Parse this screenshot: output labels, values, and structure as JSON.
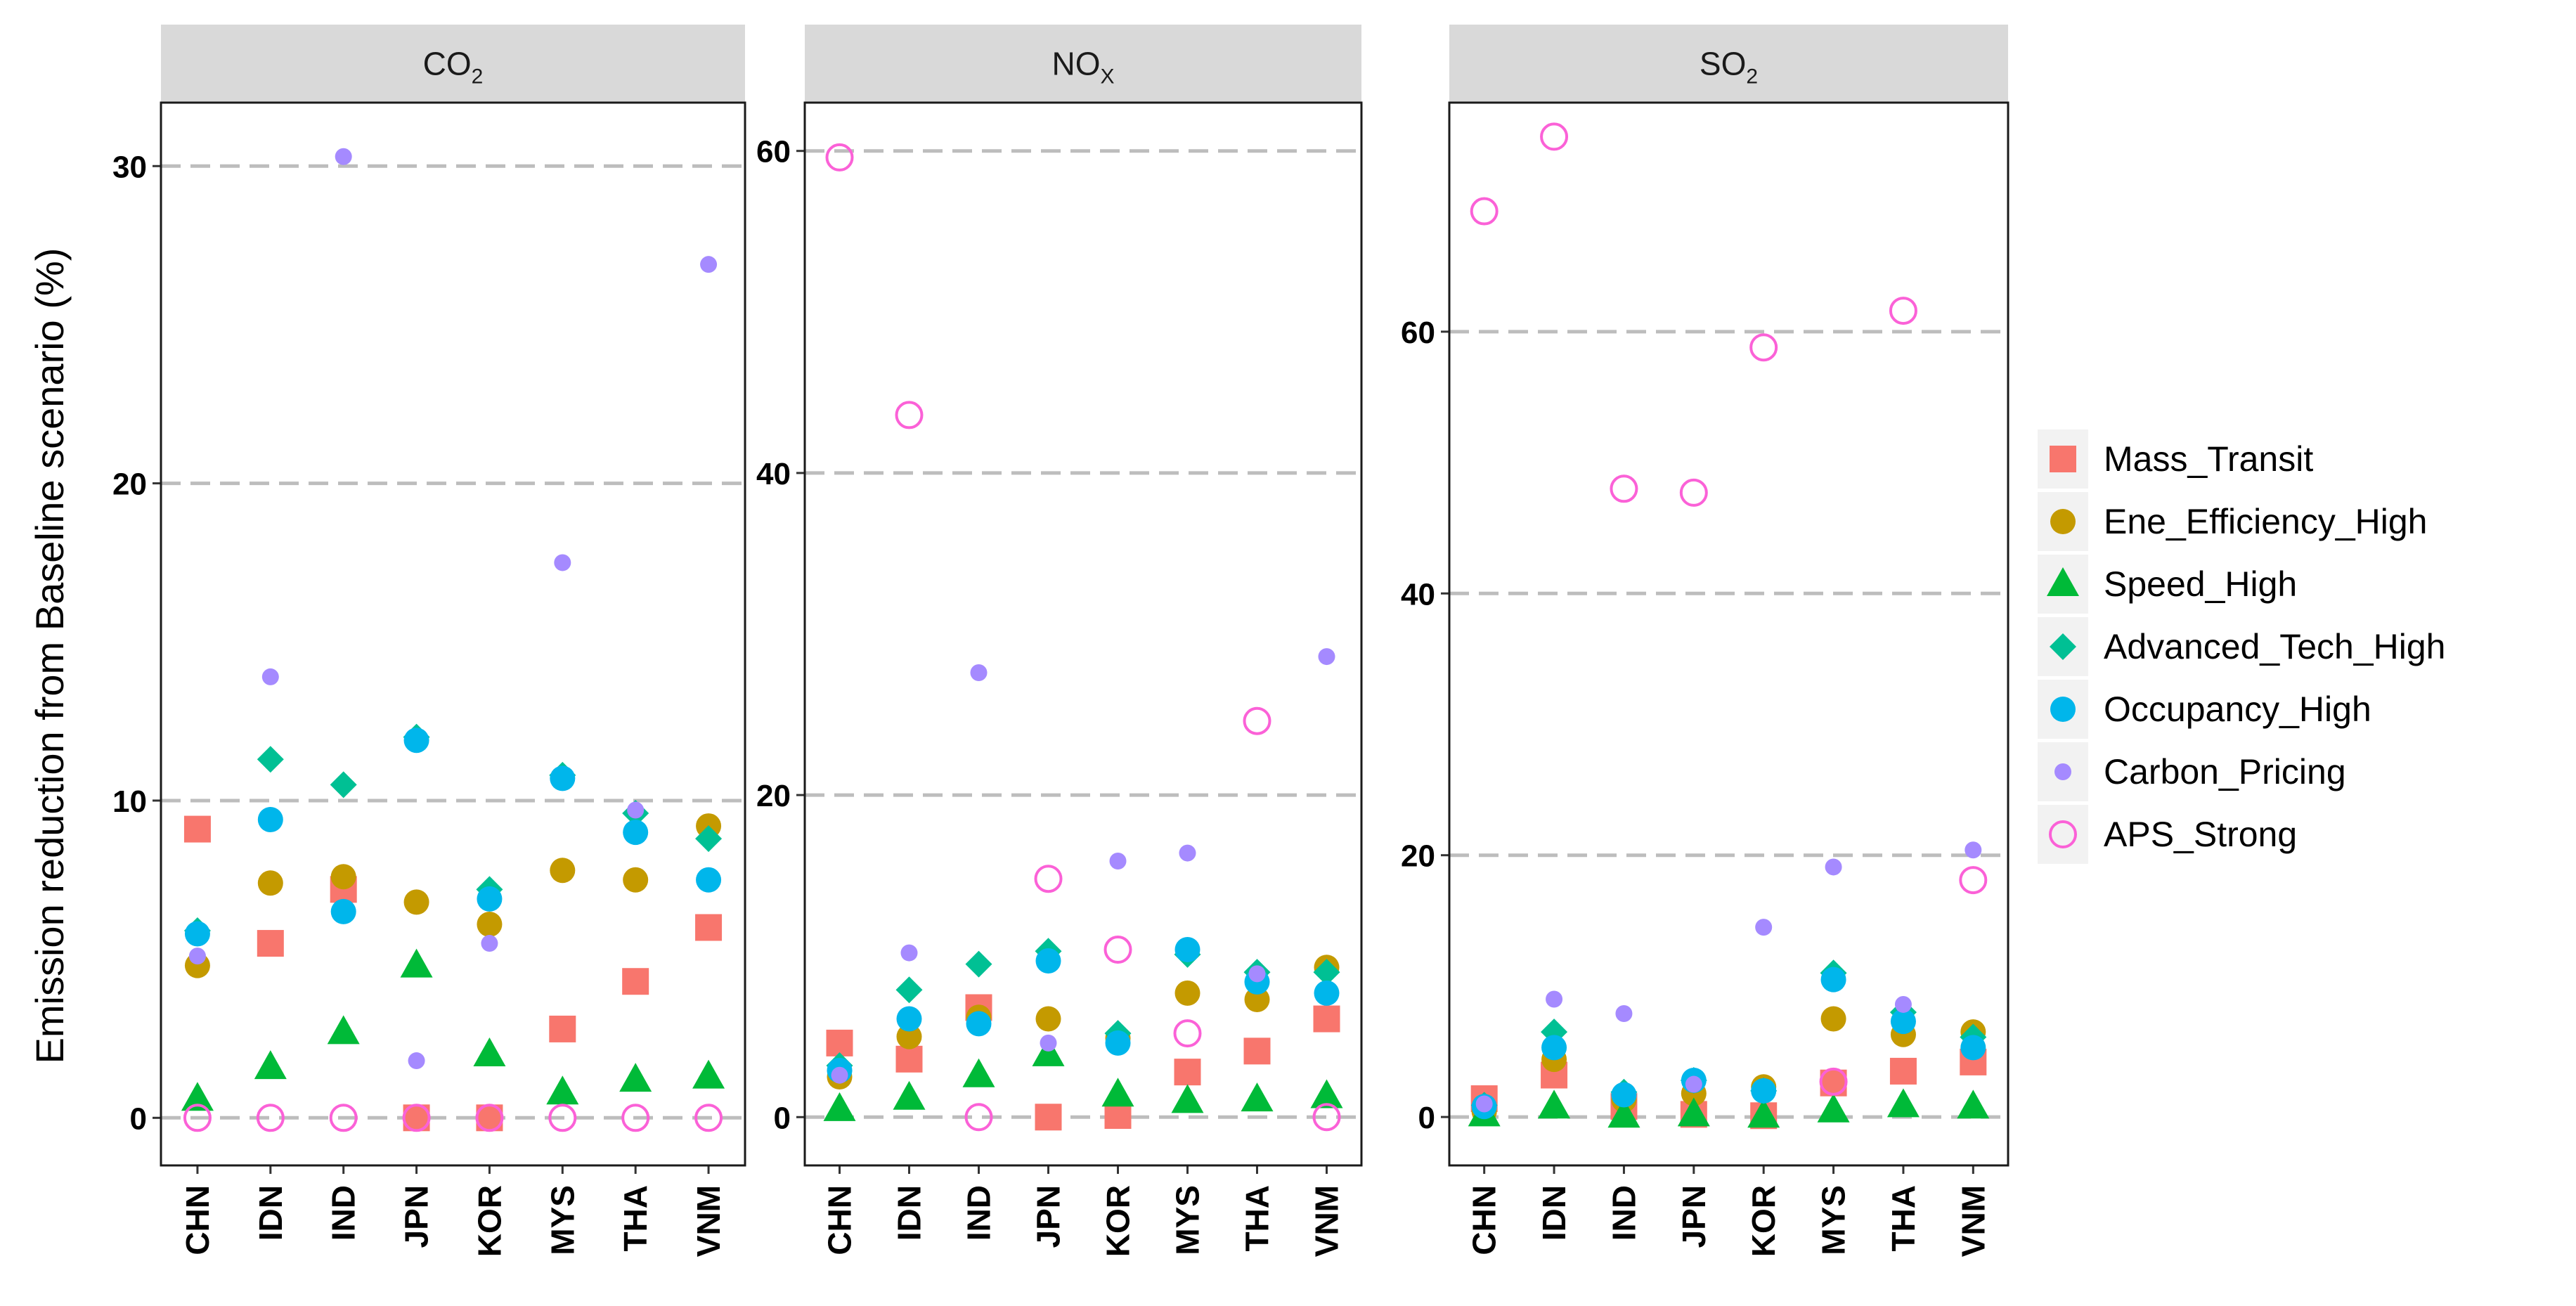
{
  "chart_data": {
    "type": "scatter",
    "ylabel": "Emission reduction from Baseline scenario (%)",
    "xlabel": "",
    "categories": [
      "CHN",
      "IDN",
      "IND",
      "JPN",
      "KOR",
      "MYS",
      "THA",
      "VNM"
    ],
    "grid": "horizontal dashed major lines",
    "legend_position": "right",
    "series_styles": [
      {
        "name": "Mass_Transit",
        "color": "#F8766D",
        "shape": "square"
      },
      {
        "name": "Ene_Efficiency_High",
        "color": "#C49A00",
        "shape": "circle"
      },
      {
        "name": "Speed_High",
        "color": "#00BA38",
        "shape": "triangle"
      },
      {
        "name": "Advanced_Tech_High",
        "color": "#00C094",
        "shape": "diamond"
      },
      {
        "name": "Occupancy_High",
        "color": "#00B6EB",
        "shape": "circle"
      },
      {
        "name": "Carbon_Pricing",
        "color": "#A58AFF",
        "shape": "small-circle"
      },
      {
        "name": "APS_Strong",
        "color": "#FB61D7",
        "shape": "open-circle"
      }
    ],
    "panels": [
      {
        "title_main": "CO",
        "title_sub": "2",
        "ylim": [
          -1.5,
          32
        ],
        "yticks": [
          0,
          10,
          20,
          30
        ],
        "series": [
          {
            "name": "Mass_Transit",
            "values": [
              9.1,
              5.5,
              7.2,
              0,
              0,
              2.8,
              4.3,
              6.0
            ]
          },
          {
            "name": "Ene_Efficiency_High",
            "values": [
              4.8,
              7.4,
              7.6,
              6.8,
              6.1,
              7.8,
              7.5,
              9.2
            ]
          },
          {
            "name": "Speed_High",
            "values": [
              0.6,
              1.6,
              2.7,
              4.8,
              2.0,
              0.8,
              1.2,
              1.3
            ]
          },
          {
            "name": "Advanced_Tech_High",
            "values": [
              5.9,
              11.3,
              10.5,
              12.0,
              7.2,
              10.8,
              9.6,
              8.8
            ]
          },
          {
            "name": "Occupancy_High",
            "values": [
              5.8,
              9.4,
              6.5,
              11.9,
              6.9,
              10.7,
              9.0,
              7.5
            ]
          },
          {
            "name": "Carbon_Pricing",
            "values": [
              5.1,
              13.9,
              30.3,
              1.8,
              5.5,
              17.5,
              9.7,
              26.9
            ]
          },
          {
            "name": "APS_Strong",
            "values": [
              0,
              0,
              0,
              0,
              0,
              0,
              0,
              0
            ]
          }
        ]
      },
      {
        "title_main": "NO",
        "title_sub": "X",
        "ylim": [
          -3,
          63
        ],
        "yticks": [
          0,
          20,
          40,
          60
        ],
        "series": [
          {
            "name": "Mass_Transit",
            "values": [
              4.6,
              3.6,
              6.8,
              0,
              0.1,
              2.8,
              4.1,
              6.1
            ]
          },
          {
            "name": "Ene_Efficiency_High",
            "values": [
              2.5,
              5.0,
              6.2,
              6.1,
              4.9,
              7.7,
              7.3,
              9.3
            ]
          },
          {
            "name": "Speed_High",
            "values": [
              0.5,
              1.2,
              2.6,
              3.9,
              1.4,
              1.0,
              1.1,
              1.3
            ]
          },
          {
            "name": "Advanced_Tech_High",
            "values": [
              3.2,
              7.9,
              9.5,
              10.3,
              5.2,
              10.1,
              9.0,
              9.0
            ]
          },
          {
            "name": "Occupancy_High",
            "values": [
              2.9,
              6.1,
              5.8,
              9.7,
              4.6,
              10.4,
              8.4,
              7.7
            ]
          },
          {
            "name": "Carbon_Pricing",
            "values": [
              2.6,
              10.2,
              27.6,
              4.6,
              15.9,
              16.4,
              8.9,
              28.6
            ]
          },
          {
            "name": "APS_Strong",
            "values": [
              59.6,
              43.6,
              0,
              14.8,
              10.4,
              5.2,
              24.6,
              0
            ]
          }
        ]
      },
      {
        "title_main": "SO",
        "title_sub": "2",
        "ylim": [
          -3.7,
          77.5
        ],
        "yticks": [
          0,
          20,
          40,
          60
        ],
        "series": [
          {
            "name": "Mass_Transit",
            "values": [
              1.4,
              3.2,
              0.8,
              0.2,
              0.1,
              2.6,
              3.5,
              4.2
            ]
          },
          {
            "name": "Ene_Efficiency_High",
            "values": [
              0.4,
              4.4,
              1.3,
              1.8,
              2.3,
              7.5,
              6.3,
              6.5
            ]
          },
          {
            "name": "Speed_High",
            "values": [
              0.2,
              0.8,
              0.1,
              0.2,
              0.1,
              0.5,
              0.9,
              0.8
            ]
          },
          {
            "name": "Advanced_Tech_High",
            "values": [
              0.9,
              6.5,
              1.9,
              2.8,
              2.0,
              11.0,
              8.0,
              6.1
            ]
          },
          {
            "name": "Occupancy_High",
            "values": [
              0.8,
              5.3,
              1.7,
              2.8,
              2.0,
              10.5,
              7.3,
              5.3
            ]
          },
          {
            "name": "Carbon_Pricing",
            "values": [
              1.0,
              9.0,
              7.9,
              2.5,
              14.5,
              19.1,
              8.6,
              20.4
            ]
          },
          {
            "name": "APS_Strong",
            "values": [
              69.2,
              74.9,
              48.0,
              47.7,
              58.8,
              2.7,
              61.6,
              18.1
            ]
          }
        ]
      }
    ]
  }
}
